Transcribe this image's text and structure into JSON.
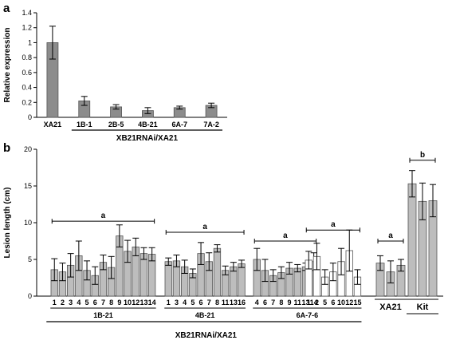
{
  "chart_data": [
    {
      "panel": "a",
      "type": "bar",
      "ylabel": "Relative expression",
      "ylim": [
        0,
        1.4
      ],
      "yticks": [
        "0",
        "0.2",
        "0.4",
        "0.6",
        "0.8",
        "1",
        "1.2",
        "1.4"
      ],
      "categories": [
        "XA21",
        "1B-1",
        "2B-5",
        "4B-21",
        "6A-7",
        "7A-2"
      ],
      "values": [
        1.0,
        0.22,
        0.14,
        0.09,
        0.13,
        0.16
      ],
      "errors": [
        0.22,
        0.06,
        0.03,
        0.04,
        0.02,
        0.03
      ],
      "group_label": "XB21RNAi/XA21",
      "grid": false
    },
    {
      "panel": "b",
      "type": "bar",
      "ylabel": "Lesion length (cm)",
      "ylim": [
        0,
        20
      ],
      "yticks": [
        "0",
        "5",
        "10",
        "15",
        "20"
      ],
      "groups": [
        {
          "name": "1B-21",
          "color": "#bdbdbd",
          "categories": [
            "1",
            "2",
            "3",
            "4",
            "5",
            "6",
            "7",
            "8",
            "9",
            "10",
            "12",
            "13",
            "14"
          ],
          "values": [
            3.6,
            3.3,
            4.2,
            5.5,
            3.5,
            2.8,
            4.6,
            3.9,
            8.2,
            6.1,
            6.7,
            5.8,
            5.7
          ],
          "errors": [
            1.5,
            1.2,
            1.6,
            2.0,
            1.3,
            1.2,
            1.0,
            1.5,
            1.5,
            1.5,
            1.2,
            0.8,
            0.9
          ],
          "sig_letter": "a"
        },
        {
          "name": "4B-21",
          "color": "#bdbdbd",
          "categories": [
            "1",
            "3",
            "4",
            "5",
            "6",
            "7",
            "8",
            "11",
            "13",
            "16"
          ],
          "values": [
            4.7,
            4.8,
            4.0,
            3.1,
            5.8,
            4.7,
            6.5,
            3.5,
            4.0,
            4.4
          ],
          "errors": [
            0.5,
            0.8,
            0.9,
            0.6,
            1.5,
            1.2,
            0.5,
            0.6,
            0.6,
            0.5
          ],
          "sig_letter": "a"
        },
        {
          "name": "6A-7-6",
          "color": "#bdbdbd",
          "categories": [
            "4",
            "6",
            "7",
            "8",
            "9",
            "11",
            "13",
            "14"
          ],
          "values": [
            5.0,
            3.5,
            2.8,
            3.2,
            3.8,
            3.8,
            4.0,
            4.7
          ],
          "errors": [
            1.5,
            1.5,
            0.8,
            0.8,
            0.8,
            0.5,
            0.5,
            1.2
          ],
          "sig_letter": "a"
        },
        {
          "name": "6A-7-6",
          "color": "#ffffff",
          "categories": [
            "1",
            "2",
            "5",
            "6",
            "10",
            "12",
            "15"
          ],
          "values": [
            4.9,
            5.4,
            2.6,
            3.3,
            4.7,
            6.2,
            2.6
          ],
          "errors": [
            1.2,
            1.8,
            1.0,
            1.2,
            1.8,
            2.8,
            1.0
          ],
          "sig_letter": "a"
        },
        {
          "name": "XA21",
          "color": "#bdbdbd",
          "categories": [
            "",
            "",
            ""
          ],
          "values": [
            4.5,
            3.3,
            4.2
          ],
          "errors": [
            1.0,
            1.5,
            0.8
          ],
          "sig_letter": "a"
        },
        {
          "name": "Kit",
          "color": "#bdbdbd",
          "categories": [
            "",
            "",
            ""
          ],
          "values": [
            15.3,
            12.9,
            13.0
          ],
          "errors": [
            1.8,
            2.5,
            2.2
          ],
          "sig_letter": "b"
        }
      ],
      "group_label": "XB21RNAi/XA21",
      "grid": false
    }
  ]
}
